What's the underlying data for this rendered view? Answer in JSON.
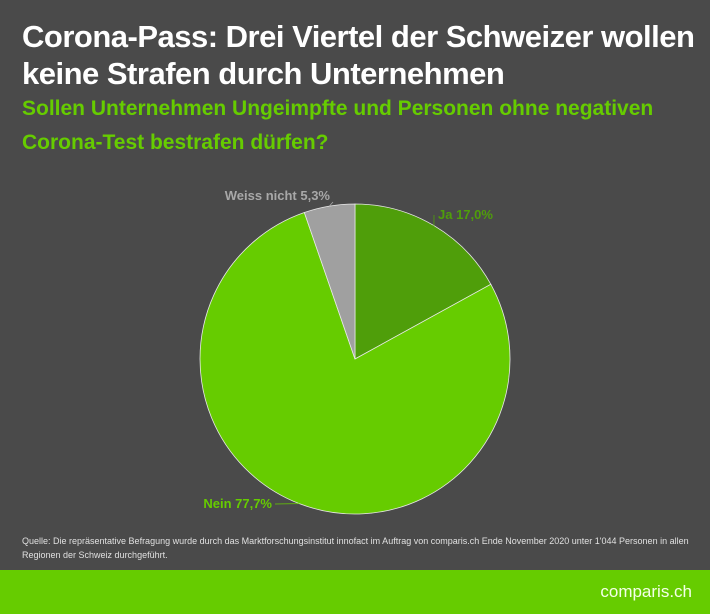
{
  "header": {
    "title": "Corona-Pass: Drei Viertel der Schweizer wollen keine Strafen durch Unternehmen",
    "subtitle": "Sollen Unternehmen Ungeimpfte und Personen ohne negativen Corona-Test bestrafen dürfen?"
  },
  "chart_data": {
    "type": "pie",
    "title": "Sollen Unternehmen Ungeimpfte und Personen ohne negativen Corona-Test bestrafen dürfen?",
    "slices": [
      {
        "label": "Ja",
        "value": 17.0,
        "display": "Ja 17,0%",
        "color": "#4f9e0a",
        "label_color": "#4f9e0a"
      },
      {
        "label": "Nein",
        "value": 77.7,
        "display": "Nein 77,7%",
        "color": "#66cc00",
        "label_color": "#66cc00"
      },
      {
        "label": "Weiss nicht",
        "value": 5.3,
        "display": "Weiss nicht 5,3%",
        "color": "#a0a0a0",
        "label_color": "#a8a8a8"
      }
    ],
    "start_angle": "12 o'clock, clockwise"
  },
  "footer": {
    "source": "Quelle: Die repräsentative Befragung wurde durch das Marktforschungsinstitut innofact im Auftrag von comparis.ch Ende November 2020 unter 1'044 Personen in allen Regionen der Schweiz durchgeführt.",
    "brand": "comparis.ch",
    "brand_color": "#66cc00"
  }
}
